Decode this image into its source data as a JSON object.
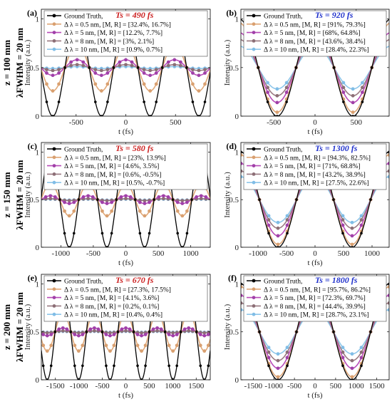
{
  "row_labels": [
    {
      "z": "z = 100 mm",
      "lambda": "λFWHM = 20 nm"
    },
    {
      "z": "z = 150 mm",
      "lambda": "λFWHM = 20 nm"
    },
    {
      "z": "z = 200 mm",
      "lambda": "λFWHM = 20 nm"
    }
  ],
  "series_styles": [
    {
      "color": "#000000",
      "marker": "#000000"
    },
    {
      "color": "#e0a878",
      "marker": "#d9a070"
    },
    {
      "color": "#b84ab8",
      "marker": "#a040a8"
    },
    {
      "color": "#9a7a82",
      "marker": "#8c6e76"
    },
    {
      "color": "#8ec6ea",
      "marker": "#80bde6"
    }
  ],
  "chart_data": [
    {
      "type": "line",
      "letter": "(a)",
      "ts_label": "Ts = 490 fs",
      "ts_color": "#cc2222",
      "xlabel": "t (fs)",
      "ylabel": "Intensity (a.u.)",
      "xlim": [
        -850,
        850
      ],
      "ylim": [
        0,
        1.1
      ],
      "xticks": [
        -500,
        0,
        500
      ],
      "yticks": [
        0,
        0.5,
        1
      ],
      "period": 490,
      "legend": [
        "Ground Truth,",
        "Δ λ = 0.5 nm, [M, R] = [32.4%, 16.7%]",
        "Δ λ = 5 nm, [M, R] = [12.2%, 7.7%]",
        "Δ λ = 8 nm, [M, R] = [3%, 2.1%]",
        "Δ λ = 10 nm, [M, R] = [0.9%, 0.7%]"
      ],
      "series": [
        {
          "name": "Ground Truth",
          "amplitude": 0.5
        },
        {
          "name": "Δ λ = 0.5 nm",
          "amplitude": 0.24
        },
        {
          "name": "Δ λ = 5 nm",
          "amplitude": 0.08
        },
        {
          "name": "Δ λ = 8 nm",
          "amplitude": 0.03
        },
        {
          "name": "Δ λ = 10 nm",
          "amplitude": 0.01
        }
      ]
    },
    {
      "type": "line",
      "letter": "(b)",
      "ts_label": "Ts = 920 fs",
      "ts_color": "#2233cc",
      "xlabel": "t (fs)",
      "ylabel": "Intensity (a.u.)",
      "xlim": [
        -900,
        900
      ],
      "ylim": [
        0,
        1.1
      ],
      "xticks": [
        -500,
        0,
        500
      ],
      "yticks": [
        0,
        0.5,
        1
      ],
      "period": 920,
      "legend": [
        "Ground Truth,",
        "Δ λ = 0.5 nm, [M, R] = [91%, 79.3%]",
        "Δ λ = 5 nm, [M, R] = [68%, 64.8%]",
        "Δ λ = 8 nm, [M, R] = [43.6%, 38.4%]",
        "Δ λ = 10 nm, [M, R] = [28.4%, 22.3%]"
      ],
      "series": [
        {
          "name": "Ground Truth",
          "amplitude": 0.5
        },
        {
          "name": "Δ λ = 0.5 nm",
          "amplitude": 0.46
        },
        {
          "name": "Δ λ = 5 nm",
          "amplitude": 0.36
        },
        {
          "name": "Δ λ = 8 nm",
          "amplitude": 0.29
        },
        {
          "name": "Δ λ = 10 nm",
          "amplitude": 0.22
        }
      ]
    },
    {
      "type": "line",
      "letter": "(c)",
      "ts_label": "Ts = 580 fs",
      "ts_color": "#cc2222",
      "xlabel": "t (fs)",
      "ylabel": "Intensity (a.u.)",
      "xlim": [
        -1300,
        1300
      ],
      "ylim": [
        0,
        1.1
      ],
      "xticks": [
        -1000,
        -500,
        0,
        500,
        1000
      ],
      "yticks": [
        0,
        0.5,
        1
      ],
      "period": 580,
      "legend": [
        "Ground Truth,",
        "Δ λ = 0.5 nm, [M, R] = [23%, 13.9%]",
        "Δ λ = 5 nm, [M, R] = [4.6%, 3.5%]",
        "Δ λ = 8 nm, [M, R] = [0.6%, -0.5%]",
        "Δ λ = 10 nm, [M, R] = [0.5%, -0.7%]"
      ],
      "series": [
        {
          "name": "Ground Truth",
          "amplitude": 0.5
        },
        {
          "name": "Δ λ = 0.5 nm",
          "amplitude": 0.17
        },
        {
          "name": "Δ λ = 5 nm",
          "amplitude": 0.04
        },
        {
          "name": "Δ λ = 8 nm",
          "amplitude": 0.01
        },
        {
          "name": "Δ λ = 10 nm",
          "amplitude": 0.005
        }
      ]
    },
    {
      "type": "line",
      "letter": "(d)",
      "ts_label": "Ts = 1300 fs",
      "ts_color": "#2233cc",
      "xlabel": "t (fs)",
      "ylabel": "Intensity (a.u.)",
      "xlim": [
        -1300,
        1300
      ],
      "ylim": [
        0,
        1.1
      ],
      "xticks": [
        -1000,
        -500,
        0,
        500,
        1000
      ],
      "yticks": [
        0,
        0.5,
        1
      ],
      "period": 1300,
      "legend": [
        "Ground Truth,",
        "Δ λ = 0.5 nm, [M, R] = [94.3%, 82.5%]",
        "Δ λ = 5 nm, [M, R] = [71%, 68.8%]",
        "Δ λ = 8 nm, [M, R] = [43.2%, 38.9%]",
        "Δ λ = 10 nm, [M, R] = [27.5%, 22.6%]"
      ],
      "series": [
        {
          "name": "Ground Truth",
          "amplitude": 0.5
        },
        {
          "name": "Δ λ = 0.5 nm",
          "amplitude": 0.47
        },
        {
          "name": "Δ λ = 5 nm",
          "amplitude": 0.38
        },
        {
          "name": "Δ λ = 8 nm",
          "amplitude": 0.3
        },
        {
          "name": "Δ λ = 10 nm",
          "amplitude": 0.24
        }
      ]
    },
    {
      "type": "line",
      "letter": "(e)",
      "ts_label": "Ts = 670 fs",
      "ts_color": "#cc2222",
      "xlabel": "t (fs)",
      "ylabel": "Intensity (a.u.)",
      "xlim": [
        -1800,
        1800
      ],
      "ylim": [
        0,
        1.1
      ],
      "xticks": [
        -1500,
        -1000,
        -500,
        0,
        500,
        1000,
        1500
      ],
      "yticks": [
        0,
        0.5,
        1
      ],
      "period": 670,
      "legend": [
        "Ground Truth,",
        "Δ λ = 0.5 nm, [M, R] = [27.3%, 17.5%]",
        "Δ λ = 5 nm, [M, R] = [4.1%, 3.6%]",
        "Δ λ = 8 nm, [M, R] = [0.2%, 0.1%]",
        "Δ λ = 10 nm, [M, R] = [0.4%, 0.4%]"
      ],
      "series": [
        {
          "name": "Ground Truth",
          "amplitude": 0.5
        },
        {
          "name": "Δ λ = 0.5 nm",
          "amplitude": 0.2
        },
        {
          "name": "Δ λ = 5 nm",
          "amplitude": 0.04
        },
        {
          "name": "Δ λ = 8 nm",
          "amplitude": 0.01
        },
        {
          "name": "Δ λ = 10 nm",
          "amplitude": 0.005
        }
      ]
    },
    {
      "type": "line",
      "letter": "(f)",
      "ts_label": "Ts = 1800 fs",
      "ts_color": "#2233cc",
      "xlabel": "t (fs)",
      "ylabel": "Intensity (a.u.)",
      "xlim": [
        -1800,
        1800
      ],
      "ylim": [
        0,
        1.1
      ],
      "xticks": [
        -1500,
        -1000,
        -500,
        0,
        500,
        1000,
        1500
      ],
      "yticks": [
        0,
        0.5,
        1
      ],
      "period": 1800,
      "legend": [
        "Ground Truth,",
        "Δ λ = 0.5 nm, [M, R] = [95.7%, 86.2%]",
        "Δ λ = 5 nm, [M, R] = [72.3%, 69.7%]",
        "Δ λ = 8 nm, [M, R] = [44.4%, 39.9%]",
        "Δ λ = 10 nm, [M, R] = [28.7%, 23.1%]"
      ],
      "series": [
        {
          "name": "Ground Truth",
          "amplitude": 0.5
        },
        {
          "name": "Δ λ = 0.5 nm",
          "amplitude": 0.47
        },
        {
          "name": "Δ λ = 5 nm",
          "amplitude": 0.38
        },
        {
          "name": "Δ λ = 8 nm",
          "amplitude": 0.3
        },
        {
          "name": "Δ λ = 10 nm",
          "amplitude": 0.23
        }
      ]
    }
  ]
}
